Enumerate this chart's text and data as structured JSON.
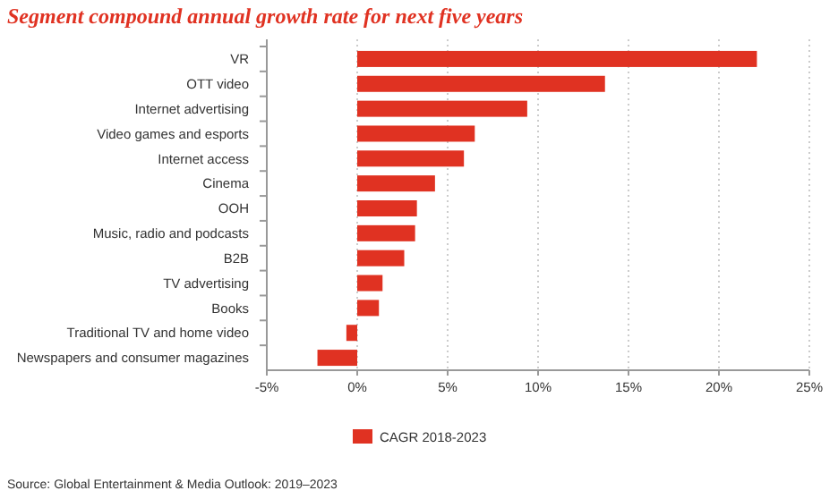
{
  "chart_data": {
    "type": "bar",
    "orientation": "horizontal",
    "title": "Segment compound annual growth rate for next five years",
    "categories": [
      "VR",
      "OTT video",
      "Internet advertising",
      "Video games and esports",
      "Internet access",
      "Cinema",
      "OOH",
      "Music, radio and podcasts",
      "B2B",
      "TV advertising",
      "Books",
      "Traditional TV and home video",
      "Newspapers and consumer magazines"
    ],
    "series": [
      {
        "name": "CAGR 2018-2023",
        "color": "#e03222",
        "values": [
          22.1,
          13.7,
          9.4,
          6.5,
          5.9,
          4.3,
          3.3,
          3.2,
          2.6,
          1.4,
          1.2,
          -0.6,
          -2.2
        ]
      }
    ],
    "xlim": [
      -5,
      25
    ],
    "xticks": [
      {
        "value": -5,
        "label": "-5%"
      },
      {
        "value": 0,
        "label": "0%"
      },
      {
        "value": 5,
        "label": "5%"
      },
      {
        "value": 10,
        "label": "10%"
      },
      {
        "value": 15,
        "label": "15%"
      },
      {
        "value": 20,
        "label": "20%"
      },
      {
        "value": 25,
        "label": "25%"
      }
    ],
    "grid": "x",
    "legend": "bottom",
    "annotations": [
      "Source: Global Entertainment & Media Outlook: 2019–2023"
    ]
  }
}
